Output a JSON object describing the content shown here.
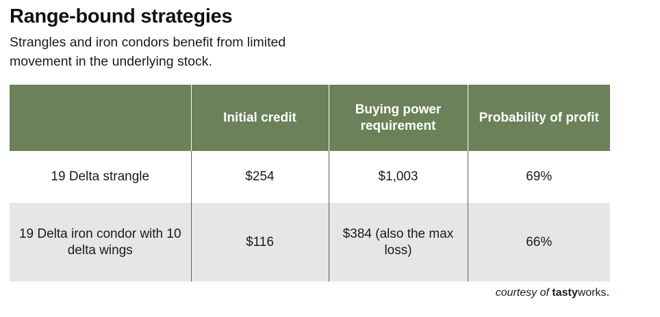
{
  "title": "Range-bound strategies",
  "subtitle": "Strangles and iron condors benefit from limited movement in the underlying stock.",
  "table": {
    "header_bg": "#6a8159",
    "stripe_bg": "#e4e6e7",
    "headers": [
      "",
      "Initial credit",
      "Buying power requirement",
      "Probability of profit"
    ],
    "rows": [
      [
        "19 Delta strangle",
        "$254",
        "$1,003",
        "69%"
      ],
      [
        "19 Delta iron condor with 10 delta wings",
        "$116",
        "$384 (also the max loss)",
        "66%"
      ]
    ]
  },
  "credit": {
    "lead": "courtesy of",
    "brand_part1": "tasty",
    "brand_part2": "works",
    "brand_dot": ".",
    "dot_color": "#c9252d"
  }
}
